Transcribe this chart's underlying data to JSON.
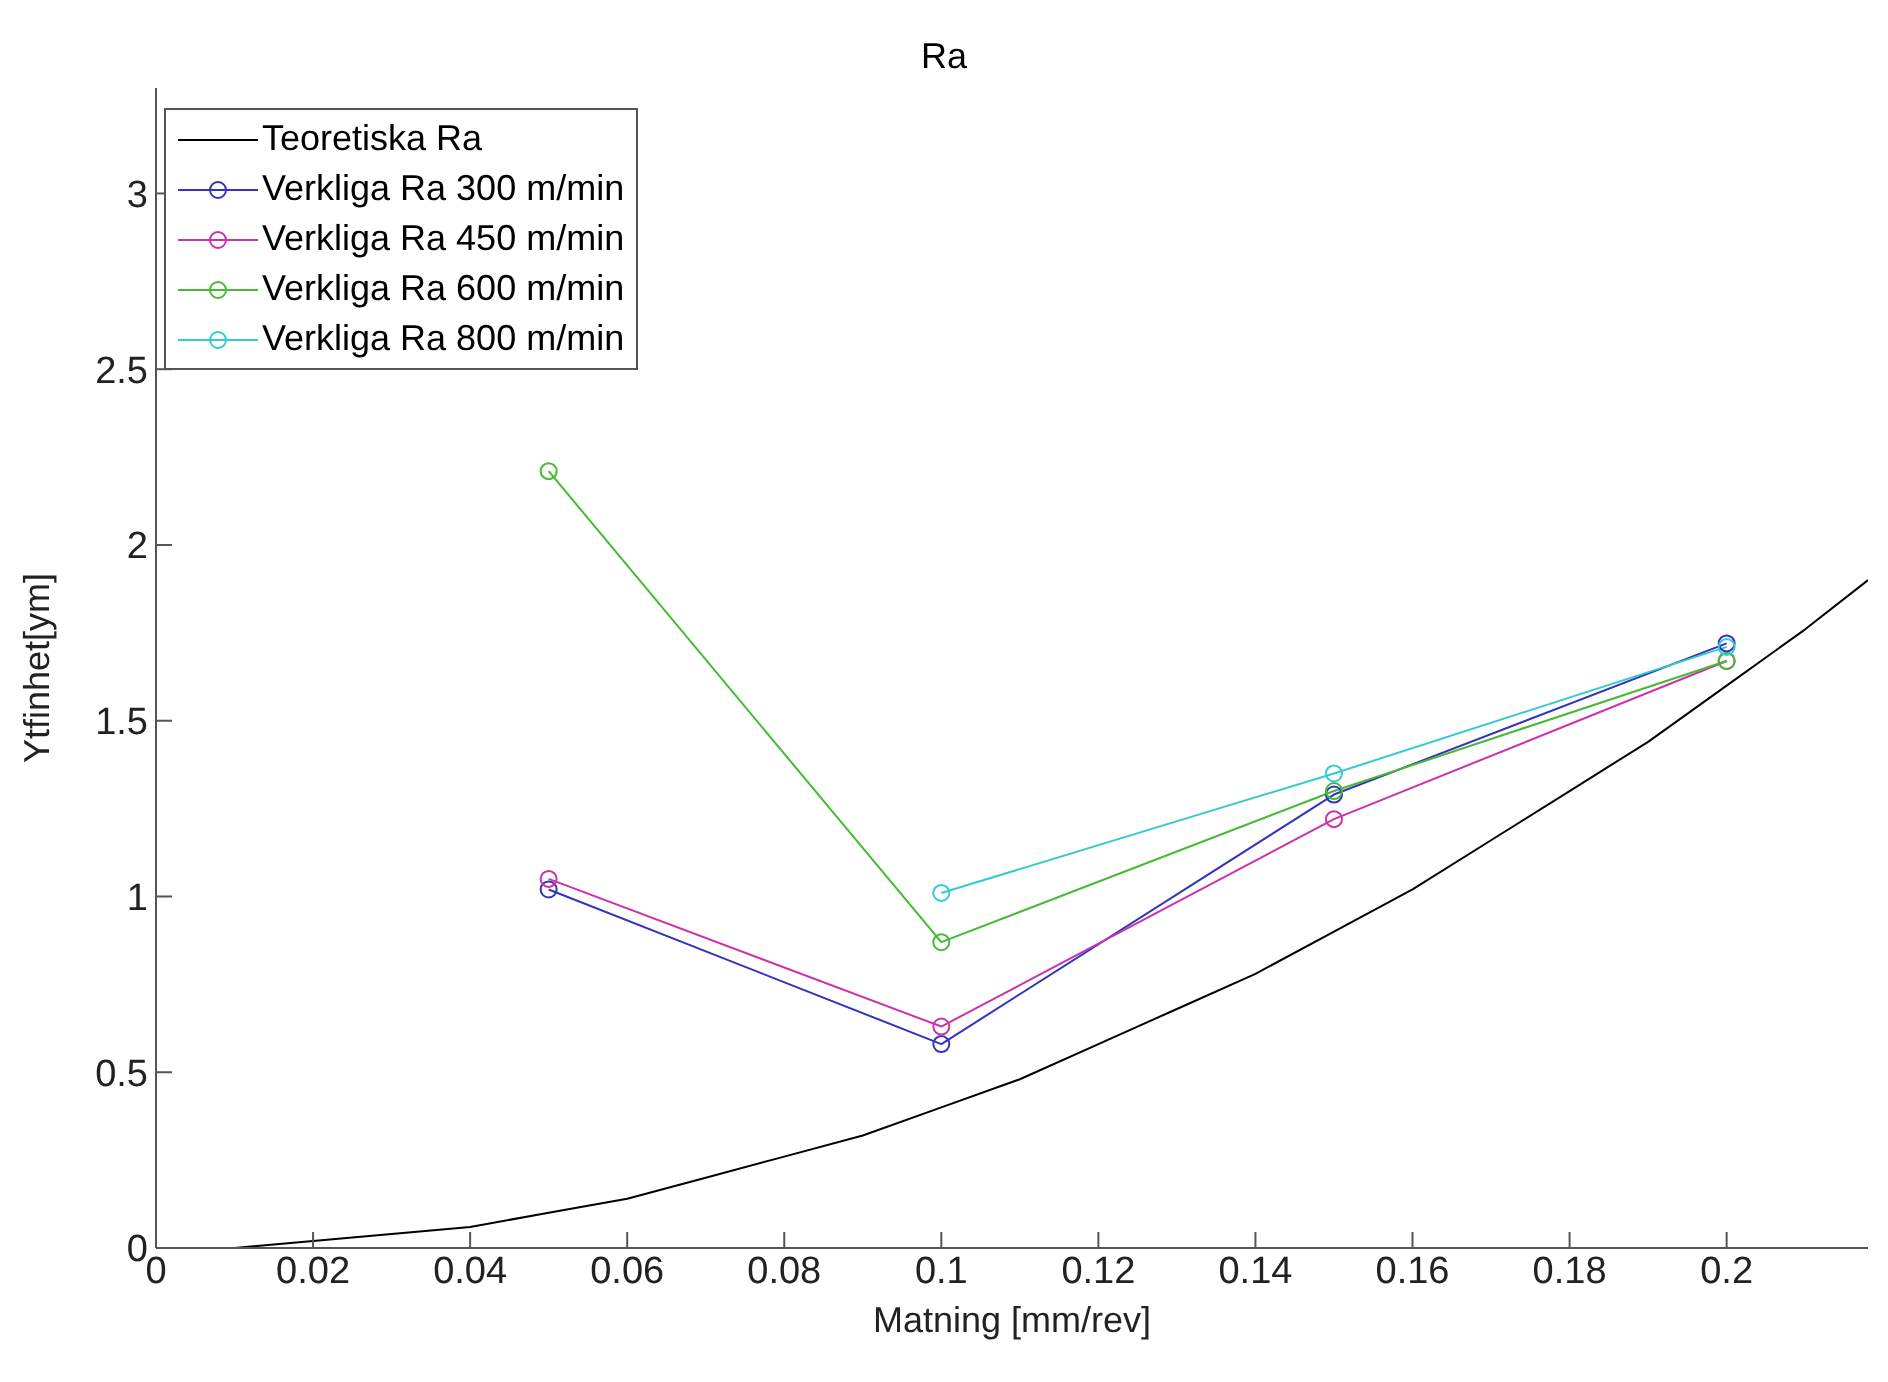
{
  "chart_data": {
    "type": "line",
    "title": "Ra",
    "xlabel": "Matning [mm/rev]",
    "ylabel": "Ytfinhet[ym]",
    "xlim": [
      0,
      0.218
    ],
    "xticks": [
      0,
      0.02,
      0.04,
      0.06,
      0.08,
      0.1,
      0.12,
      0.14,
      0.16,
      0.18,
      0.2
    ],
    "ylim": [
      0,
      3.3
    ],
    "yticks": [
      0,
      0.5,
      1,
      1.5,
      2,
      2.5,
      3
    ],
    "grid": false,
    "legend": "top left",
    "marker": "circle",
    "line_style": "solid",
    "series": [
      {
        "name": "Teoretiska Ra",
        "color": "#000000",
        "marker": "none",
        "x": [
          0.01,
          0.02,
          0.03,
          0.04,
          0.05,
          0.06,
          0.07,
          0.08,
          0.09,
          0.1,
          0.11,
          0.12,
          0.13,
          0.14,
          0.15,
          0.16,
          0.17,
          0.18,
          0.19,
          0.2,
          0.21,
          0.218
        ],
        "values": [
          0.0,
          0.02,
          0.04,
          0.06,
          0.1,
          0.14,
          0.2,
          0.26,
          0.32,
          0.4,
          0.48,
          0.58,
          0.68,
          0.78,
          0.9,
          1.02,
          1.16,
          1.3,
          1.44,
          1.6,
          1.76,
          1.9
        ]
      },
      {
        "name": "Verkliga Ra 300 m/min",
        "color": "#3333bb",
        "x": [
          0.05,
          0.1,
          0.15,
          0.2
        ],
        "values": [
          1.02,
          0.58,
          1.29,
          1.72
        ]
      },
      {
        "name": "Verkliga Ra 450 m/min",
        "color": "#cc33aa",
        "x": [
          0.05,
          0.1,
          0.15,
          0.2
        ],
        "values": [
          1.05,
          0.63,
          1.22,
          1.67
        ]
      },
      {
        "name": "Verkliga Ra 600 m/min",
        "color": "#44bb33",
        "x": [
          0.05,
          0.1,
          0.15,
          0.2
        ],
        "values": [
          2.21,
          0.87,
          1.3,
          1.67
        ]
      },
      {
        "name": "Verkliga Ra 800 m/min",
        "color": "#33cccc",
        "x": [
          0.1,
          0.15,
          0.2
        ],
        "values": [
          1.01,
          1.35,
          1.71
        ]
      }
    ]
  }
}
